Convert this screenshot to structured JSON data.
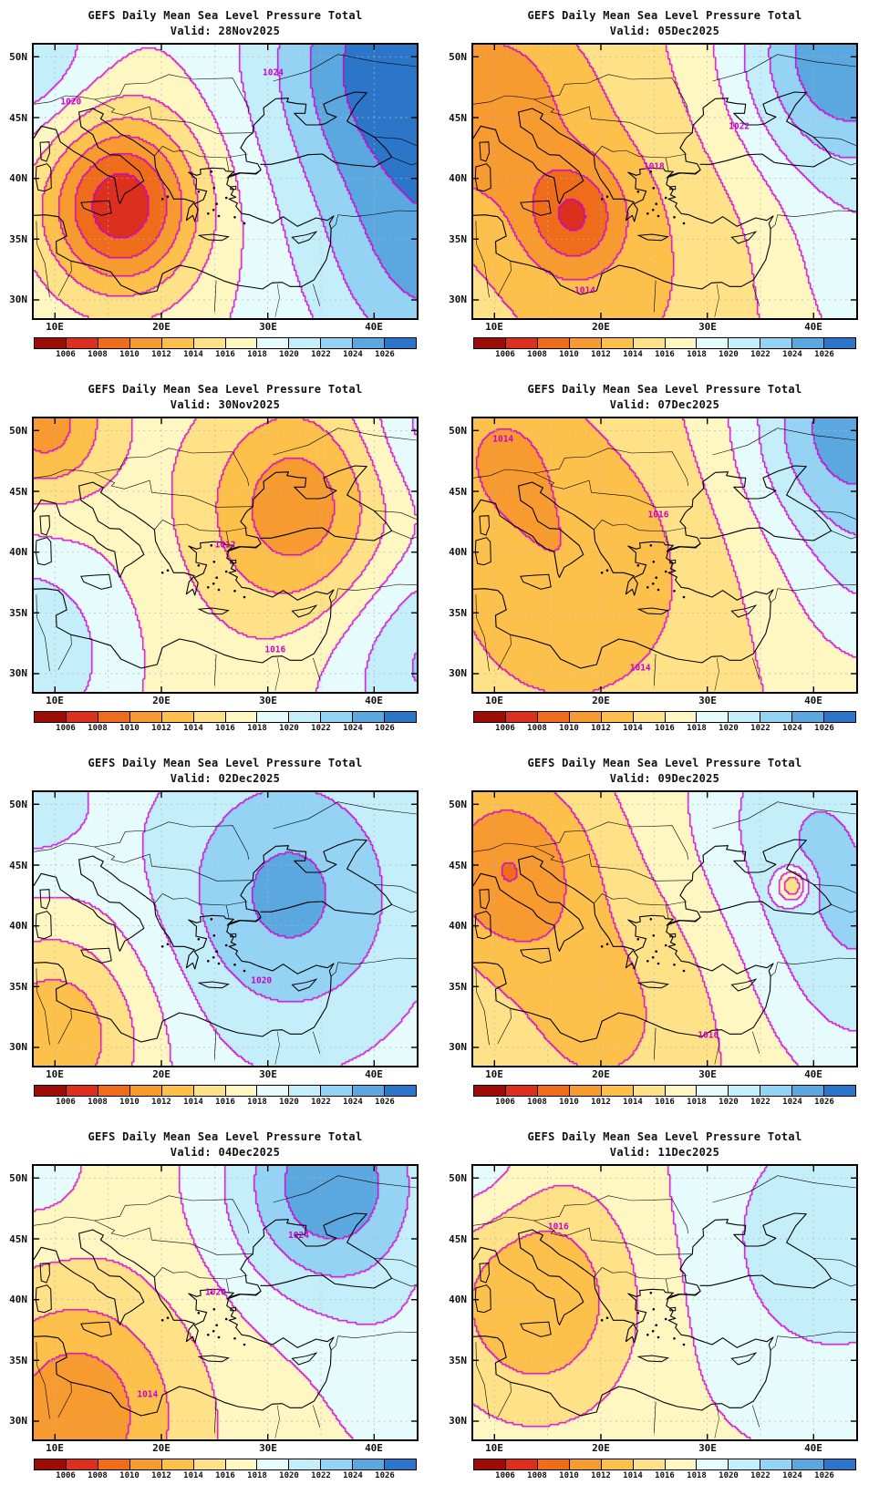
{
  "page_title": "GEFS Daily Mean Sea Level Pressure Total",
  "axes": {
    "lat_labels": [
      "50N",
      "45N",
      "40N",
      "35N",
      "30N"
    ],
    "lon_labels": [
      "10E",
      "20E",
      "30E",
      "40E"
    ]
  },
  "colorbar": {
    "labels": [
      "1006",
      "1008",
      "1010",
      "1012",
      "1014",
      "1016",
      "1018",
      "1020",
      "1022",
      "1024",
      "1026"
    ],
    "colors": [
      "#9e0c08",
      "#dc2f1e",
      "#ef6c1a",
      "#f79b31",
      "#fdc04b",
      "#ffe287",
      "#fff7c2",
      "#e6fbfb",
      "#c4eefa",
      "#94d3f3",
      "#5ba8e0",
      "#2b76c9"
    ]
  },
  "contour_color": "#cc00cc",
  "panels": [
    {
      "title": "GEFS Daily Mean Sea Level Pressure Total",
      "subtitle": "Valid: 28Nov2025"
    },
    {
      "title": "GEFS Daily Mean Sea Level Pressure Total",
      "subtitle": "Valid: 05Dec2025"
    },
    {
      "title": "GEFS Daily Mean Sea Level Pressure Total",
      "subtitle": "Valid: 30Nov2025"
    },
    {
      "title": "GEFS Daily Mean Sea Level Pressure Total",
      "subtitle": "Valid: 07Dec2025"
    },
    {
      "title": "GEFS Daily Mean Sea Level Pressure Total",
      "subtitle": "Valid: 02Dec2025"
    },
    {
      "title": "GEFS Daily Mean Sea Level Pressure Total",
      "subtitle": "Valid: 09Dec2025"
    },
    {
      "title": "GEFS Daily Mean Sea Level Pressure Total",
      "subtitle": "Valid: 04Dec2025"
    },
    {
      "title": "GEFS Daily Mean Sea Level Pressure Total",
      "subtitle": "Valid: 11Dec2025"
    }
  ],
  "chart_data": [
    {
      "type": "heatmap",
      "subtype": "filled_contour_map",
      "title": "GEFS Daily Mean Sea Level Pressure Total",
      "valid_date": "28Nov2025",
      "lon_range_deg_e": [
        8,
        44
      ],
      "lat_range_deg_n": [
        28.5,
        51
      ],
      "contour_interval_hPa": 2,
      "levels_hPa": [
        1006,
        1008,
        1010,
        1012,
        1014,
        1016,
        1018,
        1020,
        1022,
        1024,
        1026
      ],
      "base_hPa": 1018,
      "centers": [
        {
          "lon": 16.2,
          "lat": 37.8,
          "amplitude_hPa": -11.5,
          "sigma_deg": 5.2
        },
        {
          "lon": 42,
          "lat": 50,
          "amplitude_hPa": 9,
          "sigma_deg": 8.5
        },
        {
          "lon": 46,
          "lat": 33,
          "amplitude_hPa": 6,
          "sigma_deg": 8
        },
        {
          "lon": 7,
          "lat": 50,
          "amplitude_hPa": 4,
          "sigma_deg": 5
        }
      ],
      "contour_labels": [
        {
          "text": "1020",
          "lon": 11.5,
          "lat": 46.3
        },
        {
          "text": "1024",
          "lon": 30.5,
          "lat": 48.7
        }
      ]
    },
    {
      "type": "heatmap",
      "subtype": "filled_contour_map",
      "title": "GEFS Daily Mean Sea Level Pressure Total",
      "valid_date": "05Dec2025",
      "lon_range_deg_e": [
        8,
        44
      ],
      "lat_range_deg_n": [
        28.5,
        51
      ],
      "contour_interval_hPa": 2,
      "levels_hPa": [
        1006,
        1008,
        1010,
        1012,
        1014,
        1016,
        1018,
        1020,
        1022,
        1024,
        1026
      ],
      "base_hPa": 1016,
      "centers": [
        {
          "lon": 9,
          "lat": 46,
          "amplitude_hPa": -5,
          "sigma_deg": 6
        },
        {
          "lon": 17.5,
          "lat": 36.8,
          "amplitude_hPa": -5.5,
          "sigma_deg": 3.2
        },
        {
          "lon": 43,
          "lat": 50,
          "amplitude_hPa": 10,
          "sigma_deg": 7.5
        },
        {
          "lon": 45,
          "lat": 31,
          "amplitude_hPa": 3,
          "sigma_deg": 7
        },
        {
          "lon": 20,
          "lat": 33,
          "amplitude_hPa": -2.5,
          "sigma_deg": 12
        }
      ],
      "contour_labels": [
        {
          "text": "1022",
          "lon": 33,
          "lat": 44.3
        },
        {
          "text": "1018",
          "lon": 25,
          "lat": 41
        },
        {
          "text": "1014",
          "lon": 18.5,
          "lat": 30.8
        }
      ]
    },
    {
      "type": "heatmap",
      "subtype": "filled_contour_map",
      "title": "GEFS Daily Mean Sea Level Pressure Total",
      "valid_date": "30Nov2025",
      "lon_range_deg_e": [
        8,
        44
      ],
      "lat_range_deg_n": [
        28.5,
        51
      ],
      "contour_interval_hPa": 2,
      "levels_hPa": [
        1006,
        1008,
        1010,
        1012,
        1014,
        1016,
        1018,
        1020,
        1022,
        1024,
        1026
      ],
      "base_hPa": 1017,
      "centers": [
        {
          "lon": 33,
          "lat": 43.5,
          "amplitude_hPa": -6.5,
          "sigma_deg": 6.3
        },
        {
          "lon": 9,
          "lat": 50.5,
          "amplitude_hPa": -6,
          "sigma_deg": 4.2
        },
        {
          "lon": 7,
          "lat": 31.5,
          "amplitude_hPa": 5,
          "sigma_deg": 6.5
        },
        {
          "lon": 46,
          "lat": 31,
          "amplitude_hPa": 5.5,
          "sigma_deg": 7
        },
        {
          "lon": 45.5,
          "lat": 50.5,
          "amplitude_hPa": 4,
          "sigma_deg": 5
        }
      ],
      "contour_labels": [
        {
          "text": "1012",
          "lon": 26,
          "lat": 40.6
        },
        {
          "text": "1016",
          "lon": 30.7,
          "lat": 32
        }
      ]
    },
    {
      "type": "heatmap",
      "subtype": "filled_contour_map",
      "title": "GEFS Daily Mean Sea Level Pressure Total",
      "valid_date": "07Dec2025",
      "lon_range_deg_e": [
        8,
        44
      ],
      "lat_range_deg_n": [
        28.5,
        51
      ],
      "contour_interval_hPa": 2,
      "levels_hPa": [
        1006,
        1008,
        1010,
        1012,
        1014,
        1016,
        1018,
        1020,
        1022,
        1024,
        1026
      ],
      "base_hPa": 1016,
      "centers": [
        {
          "lon": 17,
          "lat": 38.5,
          "amplitude_hPa": -3.8,
          "sigma_deg": 9
        },
        {
          "lon": 10,
          "lat": 49,
          "amplitude_hPa": -2.8,
          "sigma_deg": 5
        },
        {
          "lon": 43.5,
          "lat": 50.5,
          "amplitude_hPa": 9,
          "sigma_deg": 7
        },
        {
          "lon": 46,
          "lat": 37,
          "amplitude_hPa": 3,
          "sigma_deg": 6
        }
      ],
      "contour_labels": [
        {
          "text": "1014",
          "lon": 10.8,
          "lat": 49.3
        },
        {
          "text": "1016",
          "lon": 25.4,
          "lat": 43.1
        },
        {
          "text": "1014",
          "lon": 23.7,
          "lat": 30.5
        }
      ]
    },
    {
      "type": "heatmap",
      "subtype": "filled_contour_map",
      "title": "GEFS Daily Mean Sea Level Pressure Total",
      "valid_date": "02Dec2025",
      "lon_range_deg_e": [
        8,
        44
      ],
      "lat_range_deg_n": [
        28.5,
        51
      ],
      "contour_interval_hPa": 2,
      "levels_hPa": [
        1006,
        1008,
        1010,
        1012,
        1014,
        1016,
        1018,
        1020,
        1022,
        1024,
        1026
      ],
      "base_hPa": 1019,
      "centers": [
        {
          "lon": 32,
          "lat": 42.5,
          "amplitude_hPa": 5.5,
          "sigma_deg": 8
        },
        {
          "lon": 10,
          "lat": 31,
          "amplitude_hPa": -6.5,
          "sigma_deg": 6.5
        },
        {
          "lon": 8,
          "lat": 50,
          "amplitude_hPa": 2,
          "sigma_deg": 4
        }
      ],
      "contour_labels": [
        {
          "text": "1020",
          "lon": 29.4,
          "lat": 35.5
        }
      ]
    },
    {
      "type": "heatmap",
      "subtype": "filled_contour_map",
      "title": "GEFS Daily Mean Sea Level Pressure Total",
      "valid_date": "09Dec2025",
      "lon_range_deg_e": [
        8,
        44
      ],
      "lat_range_deg_n": [
        28.5,
        51
      ],
      "contour_interval_hPa": 2,
      "levels_hPa": [
        1006,
        1008,
        1010,
        1012,
        1014,
        1016,
        1018,
        1020,
        1022,
        1024,
        1026
      ],
      "base_hPa": 1016.5,
      "centers": [
        {
          "lon": 11,
          "lat": 45,
          "amplitude_hPa": -6,
          "sigma_deg": 5.5
        },
        {
          "lon": 20,
          "lat": 33,
          "amplitude_hPa": -3,
          "sigma_deg": 8
        },
        {
          "lon": 40,
          "lat": 49,
          "amplitude_hPa": 5,
          "sigma_deg": 8
        },
        {
          "lon": 45,
          "lat": 36,
          "amplitude_hPa": 4,
          "sigma_deg": 7
        },
        {
          "lon": 38,
          "lat": 43.3,
          "amplitude_hPa": -7,
          "sigma_deg": 1
        }
      ],
      "contour_labels": [
        {
          "text": "1016",
          "lon": 30.1,
          "lat": 31
        }
      ]
    },
    {
      "type": "heatmap",
      "subtype": "filled_contour_map",
      "title": "GEFS Daily Mean Sea Level Pressure Total",
      "valid_date": "04Dec2025",
      "lon_range_deg_e": [
        8,
        44
      ],
      "lat_range_deg_n": [
        28.5,
        51
      ],
      "contour_interval_hPa": 2,
      "levels_hPa": [
        1006,
        1008,
        1010,
        1012,
        1014,
        1016,
        1018,
        1020,
        1022,
        1024,
        1026
      ],
      "base_hPa": 1017,
      "centers": [
        {
          "lon": 36,
          "lat": 49.5,
          "amplitude_hPa": 8.5,
          "sigma_deg": 7
        },
        {
          "lon": 12,
          "lat": 30.5,
          "amplitude_hPa": -6.5,
          "sigma_deg": 7
        },
        {
          "lon": 44,
          "lat": 33,
          "amplitude_hPa": 2,
          "sigma_deg": 6
        },
        {
          "lon": 8,
          "lat": 51,
          "amplitude_hPa": 2,
          "sigma_deg": 4
        }
      ],
      "contour_labels": [
        {
          "text": "1024",
          "lon": 32.9,
          "lat": 45.3
        },
        {
          "text": "1020",
          "lon": 25.1,
          "lat": 40.6
        },
        {
          "text": "1014",
          "lon": 18.7,
          "lat": 32.2
        }
      ]
    },
    {
      "type": "heatmap",
      "subtype": "filled_contour_map",
      "title": "GEFS Daily Mean Sea Level Pressure Total",
      "valid_date": "11Dec2025",
      "lon_range_deg_e": [
        8,
        44
      ],
      "lat_range_deg_n": [
        28.5,
        51
      ],
      "contour_interval_hPa": 2,
      "levels_hPa": [
        1006,
        1008,
        1010,
        1012,
        1014,
        1016,
        1018,
        1020,
        1022,
        1024,
        1026
      ],
      "base_hPa": 1017.5,
      "centers": [
        {
          "lon": 14,
          "lat": 40,
          "amplitude_hPa": -5.5,
          "sigma_deg": 6.5
        },
        {
          "lon": 42,
          "lat": 45,
          "amplitude_hPa": 4,
          "sigma_deg": 9
        },
        {
          "lon": 8,
          "lat": 51,
          "amplitude_hPa": 2.5,
          "sigma_deg": 4
        }
      ],
      "contour_labels": [
        {
          "text": "1016",
          "lon": 16,
          "lat": 46
        }
      ]
    }
  ]
}
